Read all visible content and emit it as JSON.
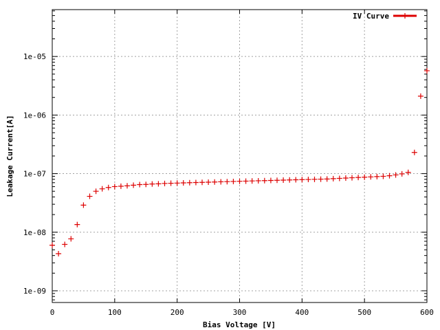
{
  "chart_data": {
    "type": "scatter",
    "xlabel": "Bias Voltage [V]",
    "ylabel": "Leakage Current[A]",
    "xlim": [
      0,
      600
    ],
    "ylim_log10": [
      -9.2,
      -4.2
    ],
    "yscale": "log",
    "grid": true,
    "legend_position": "top-right",
    "x_ticks": [
      0,
      100,
      200,
      300,
      400,
      500,
      600
    ],
    "x_tick_labels": [
      "0",
      "100",
      "200",
      "300",
      "400",
      "500",
      "600"
    ],
    "y_ticks": [
      1e-09,
      1e-08,
      1e-07,
      1e-06,
      1e-05
    ],
    "y_tick_labels": [
      "1e-09",
      "1e-08",
      "1e-07",
      "1e-06",
      "1e-05"
    ],
    "series": [
      {
        "name": "IV Curve",
        "color": "#dd0000",
        "x": [
          0,
          10,
          20,
          30,
          40,
          50,
          60,
          70,
          80,
          90,
          100,
          110,
          120,
          130,
          140,
          150,
          160,
          170,
          180,
          190,
          200,
          210,
          220,
          230,
          240,
          250,
          260,
          270,
          280,
          290,
          300,
          310,
          320,
          330,
          340,
          350,
          360,
          370,
          380,
          390,
          400,
          410,
          420,
          430,
          440,
          450,
          460,
          470,
          480,
          490,
          500,
          510,
          520,
          530,
          540,
          550,
          560,
          570,
          580,
          590,
          600
        ],
        "y": [
          6e-09,
          4.3e-09,
          6.2e-09,
          7.7e-09,
          1.35e-08,
          2.9e-08,
          4.1e-08,
          5e-08,
          5.5e-08,
          5.8e-08,
          6e-08,
          6.1e-08,
          6.2e-08,
          6.35e-08,
          6.5e-08,
          6.55e-08,
          6.65e-08,
          6.7e-08,
          6.8e-08,
          6.85e-08,
          6.9e-08,
          6.95e-08,
          7e-08,
          7.05e-08,
          7.1e-08,
          7.15e-08,
          7.2e-08,
          7.25e-08,
          7.3e-08,
          7.35e-08,
          7.4e-08,
          7.45e-08,
          7.5e-08,
          7.55e-08,
          7.6e-08,
          7.65e-08,
          7.7e-08,
          7.75e-08,
          7.8e-08,
          7.85e-08,
          7.9e-08,
          7.95e-08,
          8e-08,
          8.05e-08,
          8.1e-08,
          8.2e-08,
          8.3e-08,
          8.4e-08,
          8.5e-08,
          8.6e-08,
          8.7e-08,
          8.8e-08,
          8.9e-08,
          9e-08,
          9.2e-08,
          9.5e-08,
          9.9e-08,
          1.05e-07,
          2.3e-07,
          2.1e-06,
          5.7e-06
        ]
      }
    ]
  }
}
